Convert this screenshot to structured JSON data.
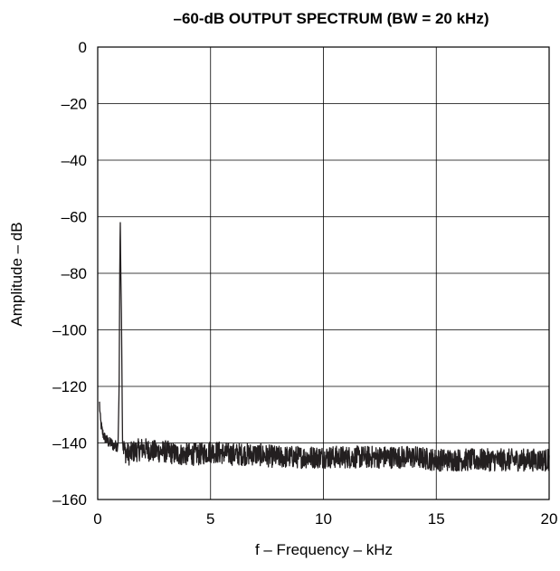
{
  "chart_data": {
    "type": "line",
    "title": "–60-dB OUTPUT SPECTRUM (BW = 20 kHz)",
    "xlabel": "f – Frequency – kHz",
    "ylabel": "Amplitude – dB",
    "xlim": [
      0,
      20
    ],
    "ylim": [
      -160,
      0
    ],
    "xticks": [
      0,
      5,
      10,
      15,
      20
    ],
    "xtick_labels": [
      "0",
      "5",
      "10",
      "15",
      "20"
    ],
    "yticks": [
      0,
      -20,
      -40,
      -60,
      -80,
      -100,
      -120,
      -140,
      -160
    ],
    "ytick_labels": [
      "0",
      "–20",
      "–40",
      "–60",
      "–80",
      "–100",
      "–120",
      "–140",
      "–160"
    ],
    "grid": true,
    "line_color": "#231f20",
    "series": [
      {
        "x": [
          0.08,
          0.12,
          0.2,
          0.3,
          0.4,
          0.5,
          0.6,
          0.7,
          0.8,
          0.9,
          0.95,
          0.98,
          1.0,
          1.02,
          1.05,
          1.1,
          1.2,
          1.4,
          1.6,
          2.0,
          2.5,
          3.0,
          3.5,
          4.0,
          4.5,
          5.0,
          6.0,
          7.0,
          8.0,
          9.0,
          10.0,
          11.0,
          12.0,
          13.0,
          14.0,
          15.0,
          16.0,
          17.0,
          18.0,
          19.0,
          20.0
        ],
        "y": [
          -126,
          -132,
          -136,
          -138,
          -139,
          -140,
          -140,
          -141,
          -141,
          -141,
          -120,
          -75,
          -61,
          -78,
          -93,
          -140,
          -143,
          -144,
          -143,
          -142,
          -143,
          -143,
          -144,
          -144,
          -144,
          -143,
          -144,
          -144,
          -145,
          -145,
          -145,
          -145,
          -145,
          -145,
          -145,
          -146,
          -146,
          -146,
          -146,
          -146,
          -146
        ],
        "noise_band_db": 4
      }
    ]
  }
}
